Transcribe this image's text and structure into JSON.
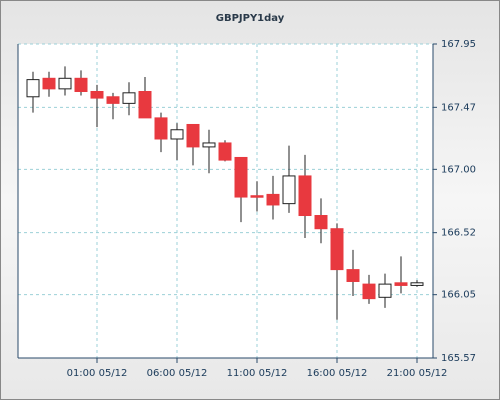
{
  "chart_data": {
    "type": "candlestick",
    "title": "GBPJPY1day",
    "categories": [
      null,
      null,
      null,
      null,
      "01:00 05/12",
      null,
      null,
      null,
      null,
      "06:00 05/12",
      null,
      null,
      null,
      null,
      "11:00 05/12",
      null,
      null,
      null,
      null,
      "16:00 05/12",
      null,
      null,
      null,
      null,
      "21:00 05/12"
    ],
    "open": [
      167.55,
      167.69,
      167.61,
      167.69,
      167.59,
      167.55,
      167.5,
      167.59,
      167.39,
      167.23,
      167.34,
      167.17,
      167.2,
      167.09,
      166.8,
      166.81,
      166.74,
      166.95,
      166.65,
      166.55,
      166.24,
      166.13,
      166.03,
      166.14,
      166.12
    ],
    "high": [
      167.74,
      167.74,
      167.78,
      167.75,
      167.64,
      167.58,
      167.66,
      167.7,
      167.43,
      167.35,
      167.34,
      167.3,
      167.22,
      167.09,
      166.91,
      166.95,
      167.18,
      167.11,
      166.78,
      166.59,
      166.39,
      166.2,
      166.21,
      166.34,
      166.16
    ],
    "low": [
      167.43,
      167.55,
      167.56,
      167.56,
      167.32,
      167.38,
      167.41,
      167.39,
      167.13,
      167.07,
      167.03,
      166.97,
      167.06,
      166.6,
      166.68,
      166.62,
      166.67,
      166.48,
      166.44,
      165.86,
      166.04,
      165.98,
      165.95,
      166.06,
      166.11
    ],
    "close": [
      167.68,
      167.61,
      167.69,
      167.59,
      167.54,
      167.5,
      167.58,
      167.39,
      167.23,
      167.3,
      167.17,
      167.2,
      167.07,
      166.79,
      166.79,
      166.73,
      166.95,
      166.65,
      166.55,
      166.24,
      166.15,
      166.02,
      166.13,
      166.12,
      166.14
    ],
    "up_color": "#ffffff",
    "down_color": "#e8393f",
    "ylim": [
      165.57,
      167.95
    ],
    "yticks": [
      165.57,
      166.05,
      166.52,
      {
        "value": 167,
        "label": "167.00"
      },
      167.47,
      167.95
    ],
    "grid": true
  }
}
